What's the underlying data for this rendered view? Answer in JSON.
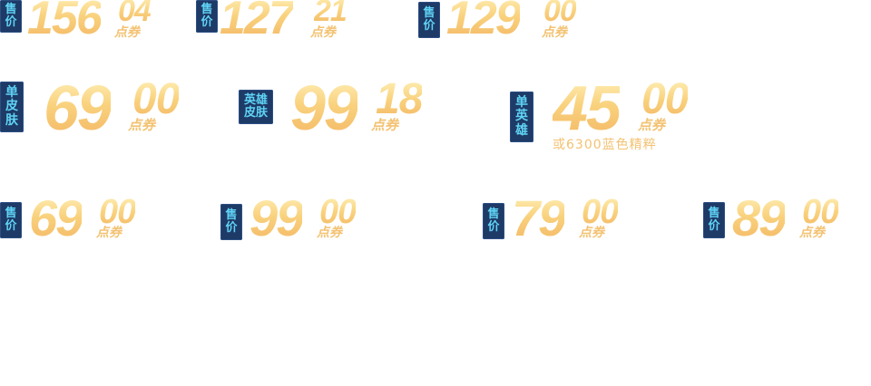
{
  "accent_colors": {
    "tag_bg": "#1e3a66",
    "tag_text": "#5fd3f5",
    "price_gold": "#f6c87a"
  },
  "prices": [
    {
      "tag": [
        "售",
        "价"
      ],
      "integer": "156",
      "decimal": "04",
      "unit": "点券"
    },
    {
      "tag": [
        "售",
        "价"
      ],
      "integer": "127",
      "decimal": "21",
      "unit": "点券"
    },
    {
      "tag": [
        "售",
        "价"
      ],
      "integer": "129",
      "decimal": "00",
      "unit": "点券"
    },
    {
      "tag": [
        "单",
        "皮",
        "肤"
      ],
      "integer": "69",
      "decimal": "00",
      "unit": "点券"
    },
    {
      "tag": [
        "英雄",
        "皮肤"
      ],
      "integer": "99",
      "decimal": "18",
      "unit": "点券"
    },
    {
      "tag": [
        "单",
        "英",
        "雄"
      ],
      "integer": "45",
      "decimal": "00",
      "unit": "点券",
      "alt": "或6300蓝色精粹"
    },
    {
      "tag": [
        "售",
        "价"
      ],
      "integer": "69",
      "decimal": "00",
      "unit": "点券"
    },
    {
      "tag": [
        "售",
        "价"
      ],
      "integer": "99",
      "decimal": "00",
      "unit": "点券"
    },
    {
      "tag": [
        "售",
        "价"
      ],
      "integer": "79",
      "decimal": "00",
      "unit": "点券"
    },
    {
      "tag": [
        "售",
        "价"
      ],
      "integer": "89",
      "decimal": "00",
      "unit": "点券"
    }
  ]
}
